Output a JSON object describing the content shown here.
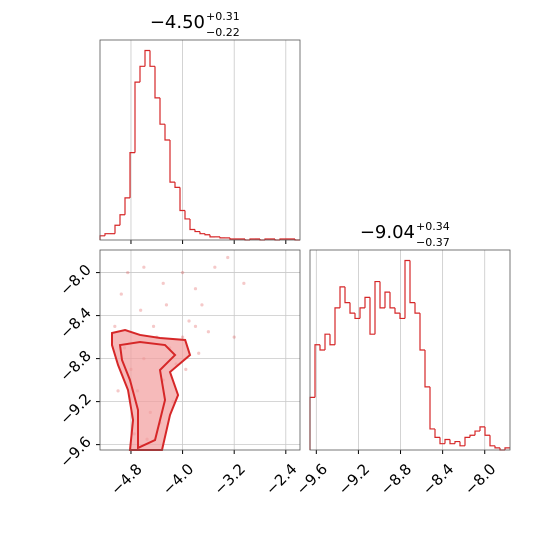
{
  "chart_data": [
    {
      "type": "histogram",
      "title": "−4.50",
      "title_upper": "+0.31",
      "title_lower": "−0.22",
      "bins": [
        -5.28,
        -5.2025,
        -5.125,
        -5.0475,
        -4.97,
        -4.8925,
        -4.815,
        -4.7375,
        -4.66,
        -4.5825,
        -4.505,
        -4.4275,
        -4.35,
        -4.2725,
        -4.195,
        -4.1175,
        -4.04,
        -3.9625,
        -3.885,
        -3.8075,
        -3.73,
        -3.6525,
        -3.575,
        -3.4975,
        -3.42,
        -3.3425,
        -3.265,
        -3.1875,
        -3.11,
        -3.0325,
        -2.955,
        -2.8775,
        -2.8,
        -2.7225,
        -2.645,
        -2.5675,
        -2.49,
        -2.4125,
        -2.335,
        -2.2575,
        -2.18
      ],
      "counts": [
        4,
        6,
        6,
        14,
        24,
        40,
        83,
        150,
        165,
        180,
        165,
        135,
        110,
        95,
        55,
        50,
        28,
        20,
        10,
        8,
        6,
        5,
        3,
        3,
        2,
        2,
        1,
        1,
        1,
        0,
        1,
        1,
        0,
        1,
        1,
        0,
        1,
        1,
        1,
        0
      ],
      "color": "#d62728",
      "xlim": [
        -5.28,
        -2.18
      ],
      "ylim": [
        0,
        190
      ],
      "xticks": [
        -4.8,
        -4.0,
        -3.2,
        -2.4
      ],
      "grid": true
    },
    {
      "type": "scatter",
      "x": [
        -4.9,
        -4.8,
        -4.7,
        -4.6,
        -4.5,
        -4.4,
        -4.3,
        -4.2,
        -4.1,
        -4.0,
        -3.9,
        -3.8,
        -3.7,
        -3.6,
        -4.95,
        -4.85,
        -4.6,
        -4.3,
        -4.0,
        -3.8,
        -3.5,
        -3.3,
        -3.2,
        -3.05,
        -5.0,
        -4.75,
        -4.55,
        -4.35,
        -4.45,
        -4.25,
        -3.95,
        -3.75,
        -5.05,
        -4.65,
        -4.15
      ],
      "y": [
        -8.7,
        -8.9,
        -9.1,
        -8.8,
        -9.3,
        -8.6,
        -9.0,
        -8.7,
        -8.85,
        -8.6,
        -8.45,
        -8.5,
        -8.3,
        -8.55,
        -8.2,
        -8.0,
        -7.95,
        -8.1,
        -8.0,
        -8.15,
        -7.95,
        -7.86,
        -8.6,
        -8.1,
        -9.1,
        -9.5,
        -9.55,
        -9.4,
        -8.5,
        -8.3,
        -8.9,
        -8.75,
        -8.5,
        -8.35,
        -9.2
      ],
      "contours": [
        {
          "x": [
            -5.094,
            -4.892,
            -4.66,
            -4.35,
            -3.96,
            -3.885,
            -4.195,
            -4.07,
            -4.195,
            -4.319,
            -4.815,
            -4.768,
            -4.846,
            -5.0,
            -5.094
          ],
          "y": [
            -8.562,
            -8.534,
            -8.58,
            -8.608,
            -8.627,
            -8.767,
            -8.925,
            -9.139,
            -9.325,
            -9.65,
            -9.65,
            -9.371,
            -9.092,
            -8.86,
            -8.674
          ]
        },
        {
          "x": [
            -4.97,
            -4.66,
            -4.272,
            -4.117,
            -4.35,
            -4.272,
            -4.427,
            -4.691,
            -4.691,
            -4.815,
            -4.939
          ],
          "y": [
            -8.674,
            -8.646,
            -8.674,
            -8.767,
            -8.906,
            -9.185,
            -9.557,
            -9.631,
            -9.278,
            -9.0,
            -8.813
          ]
        }
      ],
      "color": "#d62728",
      "contour_fill": "#f29c9c",
      "xlim": [
        -5.28,
        -2.18
      ],
      "ylim": [
        -9.65,
        -7.79
      ],
      "xticks": [
        {
          "value": -4.8,
          "label": "−4.8"
        },
        {
          "value": -4.0,
          "label": "−4.0"
        },
        {
          "value": -3.2,
          "label": "−3.2"
        },
        {
          "value": -2.4,
          "label": "−2.4"
        }
      ],
      "yticks": [
        {
          "value": -8.0,
          "label": "−8.0"
        },
        {
          "value": -8.4,
          "label": "−8.4"
        },
        {
          "value": -8.8,
          "label": "−8.8"
        },
        {
          "value": -9.2,
          "label": "−9.2"
        },
        {
          "value": -9.6,
          "label": "−9.6"
        }
      ],
      "grid": true
    },
    {
      "type": "histogram",
      "title": "−9.04",
      "title_upper": "+0.34",
      "title_lower": "−0.37",
      "bins": [
        -9.66,
        -9.6125,
        -9.565,
        -9.5175,
        -9.47,
        -9.4225,
        -9.375,
        -9.3275,
        -9.28,
        -9.2325,
        -9.185,
        -9.1375,
        -9.09,
        -9.0425,
        -8.995,
        -8.9475,
        -8.9,
        -8.8525,
        -8.805,
        -8.7575,
        -8.71,
        -8.6625,
        -8.615,
        -8.5675,
        -8.52,
        -8.4725,
        -8.425,
        -8.3775,
        -8.33,
        -8.2825,
        -8.235,
        -8.1875,
        -8.14,
        -8.0925,
        -8.045,
        -7.9975,
        -7.95,
        -7.9025,
        -7.855,
        -7.8075,
        -7.76
      ],
      "counts": [
        50,
        100,
        95,
        110,
        100,
        135,
        155,
        140,
        130,
        125,
        135,
        145,
        110,
        160,
        135,
        150,
        135,
        130,
        125,
        180,
        140,
        130,
        95,
        60,
        20,
        12,
        6,
        10,
        6,
        8,
        4,
        12,
        14,
        18,
        22,
        14,
        4,
        2,
        0,
        2
      ],
      "color": "#d62728",
      "xlim": [
        -9.66,
        -7.76
      ],
      "ylim": [
        0,
        190
      ],
      "xticks": [
        {
          "value": -9.6,
          "label": "−9.6"
        },
        {
          "value": -9.2,
          "label": "−9.2"
        },
        {
          "value": -8.8,
          "label": "−8.8"
        },
        {
          "value": -8.4,
          "label": "−8.4"
        },
        {
          "value": -8.0,
          "label": "−8.0"
        }
      ],
      "grid": true
    }
  ]
}
